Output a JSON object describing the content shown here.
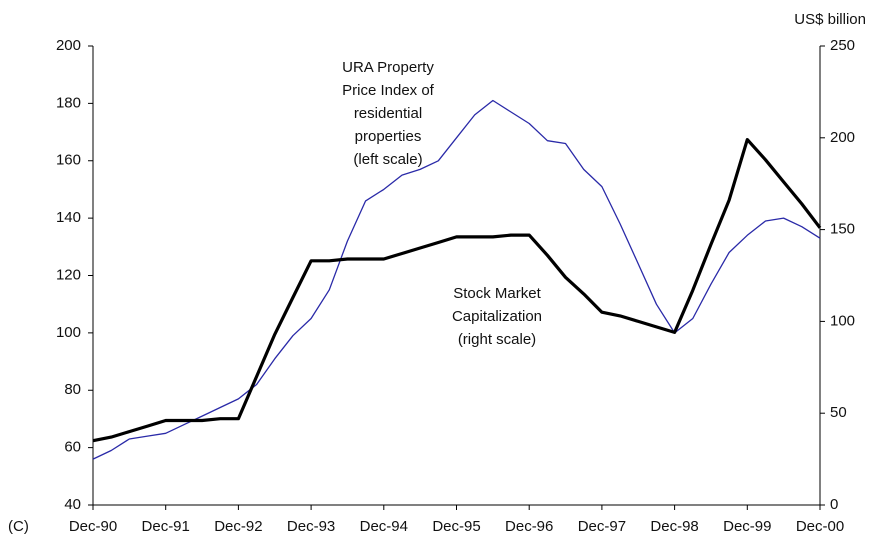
{
  "chart_data": {
    "type": "line",
    "panel_label": "(C)",
    "y2_label": "US$ billion",
    "categories": [
      "Dec-90",
      null,
      null,
      null,
      "Dec-91",
      null,
      null,
      null,
      "Dec-92",
      null,
      null,
      null,
      "Dec-93",
      null,
      null,
      null,
      "Dec-94",
      null,
      null,
      null,
      "Dec-95",
      null,
      null,
      null,
      "Dec-96",
      null,
      null,
      null,
      "Dec-97",
      null,
      null,
      null,
      "Dec-98",
      null,
      null,
      null,
      "Dec-99",
      null,
      null,
      null,
      "Dec-00"
    ],
    "series": [
      {
        "color": "#2a2aa8",
        "width": 1.3,
        "axis": "y",
        "values": [
          56,
          59,
          63,
          64,
          65,
          68,
          71,
          74,
          77,
          82,
          91,
          99,
          105,
          115,
          132,
          146,
          150,
          155,
          157,
          160,
          168,
          176,
          181,
          177,
          173,
          167,
          166,
          157,
          151,
          138,
          124,
          110,
          100,
          105,
          117,
          128,
          134,
          139,
          140,
          137,
          133
        ]
      },
      {
        "color": "#000000",
        "width": 3.2,
        "axis": "y2",
        "values": [
          35,
          37,
          40,
          43,
          46,
          46,
          46,
          47,
          47,
          70,
          93,
          113,
          133,
          133,
          134,
          134,
          134,
          137,
          140,
          143,
          146,
          146,
          146,
          147,
          147,
          136,
          124,
          115,
          105,
          103,
          100,
          97,
          94,
          117,
          142,
          166,
          199,
          188,
          176,
          164,
          151
        ]
      }
    ],
    "annotations": [
      {
        "lines": [
          "URA Property",
          "Price Index of",
          "residential",
          "properties",
          "(left scale)"
        ]
      },
      {
        "lines": [
          "Stock Market",
          "Capitalization",
          "(right scale)"
        ]
      }
    ],
    "ylim": [
      40,
      200
    ],
    "yticks": [
      40,
      60,
      80,
      100,
      120,
      140,
      160,
      180,
      200
    ],
    "y2lim": [
      0,
      250
    ],
    "y2ticks": [
      0,
      50,
      100,
      150,
      200,
      250
    ]
  }
}
